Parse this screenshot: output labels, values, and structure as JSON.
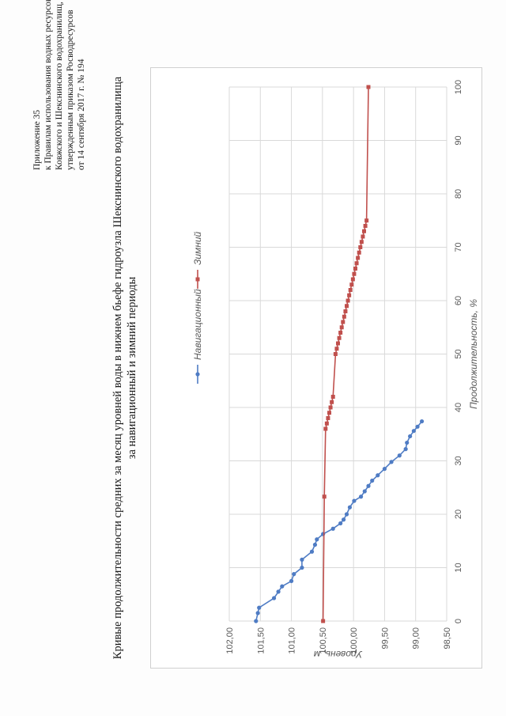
{
  "document": {
    "appendix_lines": [
      "Приложение 35",
      "к Правилам использования водных ресурсов",
      "Ковжского и Шекснинского водохранилищ,",
      "утвержденным приказом Росводресурсов",
      "от 14 сентября 2017 г. № 194"
    ],
    "title_line1": "Кривые продолжительности средних за месяц уровней воды в нижнем бьефе гидроузла Шекснинского водохранилища",
    "title_line2": "за навигационный и зимний периоды"
  },
  "chart_data": {
    "type": "line",
    "xlabel": "Продолжительность, %",
    "ylabel": "Уровень, м",
    "xlim": [
      0,
      100
    ],
    "ylim": [
      98.5,
      102.0
    ],
    "x_ticks": [
      "0",
      "10",
      "20",
      "30",
      "40",
      "50",
      "60",
      "70",
      "80",
      "90",
      "100"
    ],
    "y_ticks": [
      "98,50",
      "99,00",
      "99,50",
      "100,00",
      "100,50",
      "101,00",
      "101,50",
      "102,00"
    ],
    "grid": true,
    "legend_position": "top",
    "colors": {
      "navigation": "#4f7cc4",
      "winter": "#c0504d"
    },
    "series": [
      {
        "name": "Навигационный",
        "x": [
          0,
          1.5,
          2.5,
          4.3,
          5.5,
          6.5,
          7.5,
          8.8,
          10.0,
          11.5,
          13.0,
          14.3,
          15.3,
          16.3,
          17.3,
          18.3,
          19.0,
          20.0,
          21.3,
          22.5,
          23.3,
          24.3,
          25.3,
          26.3,
          27.3,
          28.5,
          29.8,
          31.0,
          32.2,
          33.4,
          34.6,
          35.6,
          36.4,
          37.4
        ],
        "values": [
          101.57,
          101.54,
          101.52,
          101.28,
          101.21,
          101.15,
          101.0,
          100.96,
          100.83,
          100.83,
          100.67,
          100.62,
          100.59,
          100.49,
          100.33,
          100.21,
          100.16,
          100.11,
          100.06,
          99.99,
          99.88,
          99.82,
          99.76,
          99.7,
          99.61,
          99.5,
          99.39,
          99.26,
          99.16,
          99.14,
          99.09,
          99.03,
          98.97,
          98.9
        ]
      },
      {
        "name": "Зимний",
        "x": [
          0,
          23.3,
          36.0,
          37.0,
          38.0,
          39.0,
          40.0,
          41.0,
          42.0,
          50.0,
          51.0,
          52.0,
          53.0,
          54.0,
          55.0,
          56.0,
          57.0,
          58.0,
          59.0,
          60.0,
          61.0,
          62.0,
          63.0,
          64.0,
          65.0,
          66.0,
          67.0,
          68.0,
          69.0,
          70.0,
          71.0,
          72.0,
          73.0,
          74.0,
          75.0,
          100.0
        ],
        "values": [
          100.49,
          100.47,
          100.45,
          100.43,
          100.41,
          100.39,
          100.37,
          100.35,
          100.33,
          100.29,
          100.27,
          100.25,
          100.23,
          100.21,
          100.19,
          100.17,
          100.15,
          100.13,
          100.11,
          100.09,
          100.07,
          100.05,
          100.03,
          100.01,
          99.99,
          99.97,
          99.95,
          99.93,
          99.91,
          99.89,
          99.87,
          99.85,
          99.83,
          99.81,
          99.79,
          99.76
        ]
      }
    ]
  }
}
